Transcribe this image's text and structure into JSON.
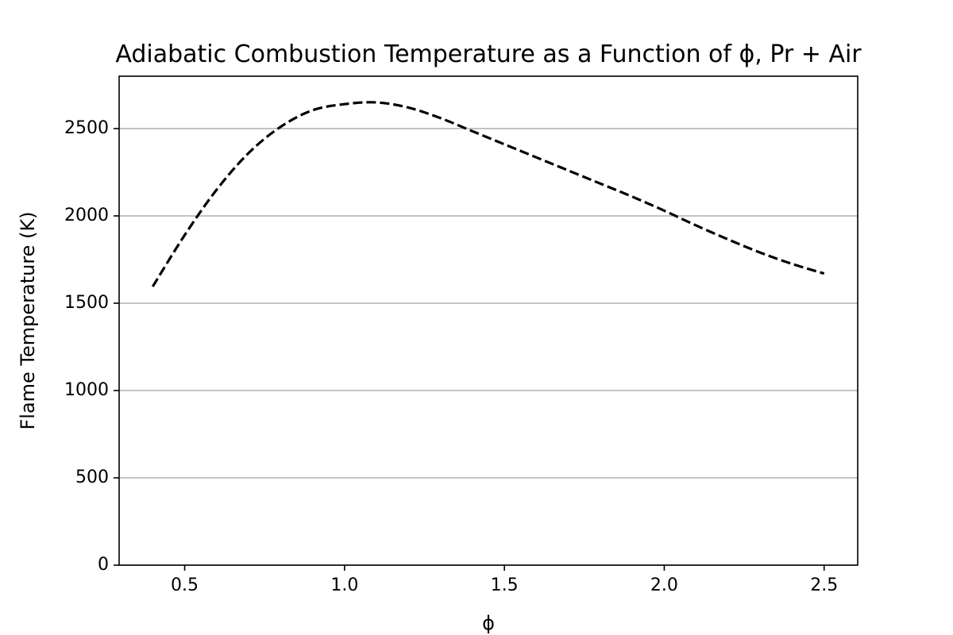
{
  "chart_data": {
    "type": "line",
    "title": "Adiabatic Combustion Temperature as a Function of ϕ, Pr + Air",
    "xlabel": "ϕ",
    "ylabel": "Flame Temperature (K)",
    "xlim": [
      0.295,
      2.605
    ],
    "ylim": [
      0,
      2800
    ],
    "x_ticks": [
      0.5,
      1.0,
      1.5,
      2.0,
      2.5
    ],
    "x_tick_labels": [
      "0.5",
      "1.0",
      "1.5",
      "2.0",
      "2.5"
    ],
    "y_ticks": [
      0,
      500,
      1000,
      1500,
      2000,
      2500
    ],
    "y_tick_labels": [
      "0",
      "500",
      "1000",
      "1500",
      "2000",
      "2500"
    ],
    "grid": "y-major",
    "legend": "none",
    "series": [
      {
        "color": "#000000",
        "linestyle": "dashed",
        "x": [
          0.4,
          0.5,
          0.6,
          0.7,
          0.8,
          0.9,
          1.0,
          1.1,
          1.2,
          1.3,
          1.4,
          1.5,
          1.6,
          1.7,
          1.8,
          1.9,
          2.0,
          2.1,
          2.2,
          2.3,
          2.4,
          2.5
        ],
        "y": [
          1595,
          1890,
          2150,
          2360,
          2510,
          2605,
          2640,
          2650,
          2620,
          2560,
          2485,
          2410,
          2335,
          2260,
          2185,
          2110,
          2030,
          1945,
          1865,
          1790,
          1725,
          1670
        ]
      }
    ]
  },
  "colors": {
    "background": "#ffffff",
    "axes": "#000000",
    "grid": "#b0b0b0",
    "line": "#000000"
  }
}
